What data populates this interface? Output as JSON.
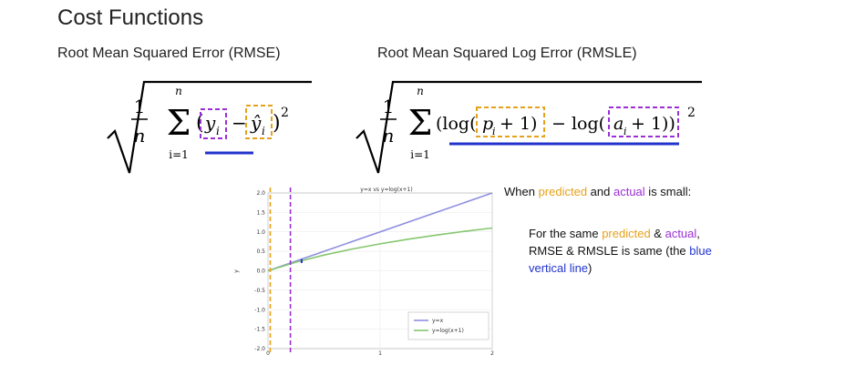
{
  "slide": {
    "title": "Cost Functions",
    "rmse_heading": "Root Mean Squared Error (RMSE)",
    "rmsle_heading": "Root Mean Squared Log Error (RMSLE)"
  },
  "formulas": {
    "rmse": {
      "frac_num": "1",
      "frac_den": "n",
      "sum_top": "n",
      "sum_bottom": "i=1",
      "open_paren": "(",
      "term_actual": "y",
      "term_actual_sub": "i",
      "minus": "−",
      "term_pred": "ŷ",
      "term_pred_sub": "i",
      "close_paren": ")",
      "power": "2"
    },
    "rmsle": {
      "frac_num": "1",
      "frac_den": "n",
      "sum_top": "n",
      "sum_bottom": "i=1",
      "log_open": "(log(",
      "term_pred": "p",
      "term_pred_sub": "i",
      "term_pred_plus": "+ 1)",
      "minus": "− log(",
      "term_actual": "a",
      "term_actual_sub": "i",
      "term_actual_plus": "+ 1))",
      "power": "2"
    }
  },
  "annotations": {
    "line1_a": "When ",
    "line1_pred": "predicted",
    "line1_b": " and ",
    "line1_actual": "actual",
    "line1_c": " is small:",
    "block_a": "For the same ",
    "block_pred": "predicted",
    "block_b": " & ",
    "block_actual": "actual",
    "block_c": ", RMSE & RMSLE is same (the ",
    "block_blue": "blue vertical line",
    "block_d": ")"
  },
  "colors": {
    "orange": "#e6a11a",
    "purple": "#9b2fd6",
    "blue": "#2233cc",
    "line_yx": "#8f8fe0",
    "line_log": "#86c66e"
  },
  "chart_data": {
    "type": "line",
    "title": "y=x vs y=log(x+1)",
    "ylabel": "y",
    "xlabel": "",
    "xlim": [
      0,
      2
    ],
    "ylim": [
      -2.0,
      2.0
    ],
    "x_ticks": [
      "0",
      "1",
      "2"
    ],
    "y_ticks": [
      "2.0",
      "1.5",
      "1.0",
      "0.5",
      "0.0",
      "-0.5",
      "-1.0",
      "-1.5",
      "-2.0"
    ],
    "x_tick_values": [
      0,
      1,
      2
    ],
    "y_tick_values": [
      2.0,
      1.5,
      1.0,
      0.5,
      0.0,
      -0.5,
      -1.0,
      -1.5,
      -2.0
    ],
    "grid": true,
    "legend_position": "lower-right",
    "series": [
      {
        "name": "y=x",
        "x": [
          0,
          0.5,
          1.0,
          1.5,
          2.0
        ],
        "values": [
          0,
          0.5,
          1.0,
          1.5,
          2.0
        ]
      },
      {
        "name": "y=log(x+1)",
        "x": [
          0,
          0.25,
          0.5,
          0.75,
          1.0,
          1.25,
          1.5,
          1.75,
          2.0
        ],
        "values": [
          0,
          0.223,
          0.405,
          0.56,
          0.693,
          0.811,
          0.916,
          1.012,
          1.099
        ]
      }
    ],
    "annotations": {
      "dashed_vlines": [
        {
          "x": 0.02,
          "color": "orange"
        },
        {
          "x": 0.2,
          "color": "purple"
        }
      ],
      "blue_segment": {
        "x": 0.3,
        "y_from": 0.3,
        "y_to": 0.2
      }
    }
  }
}
